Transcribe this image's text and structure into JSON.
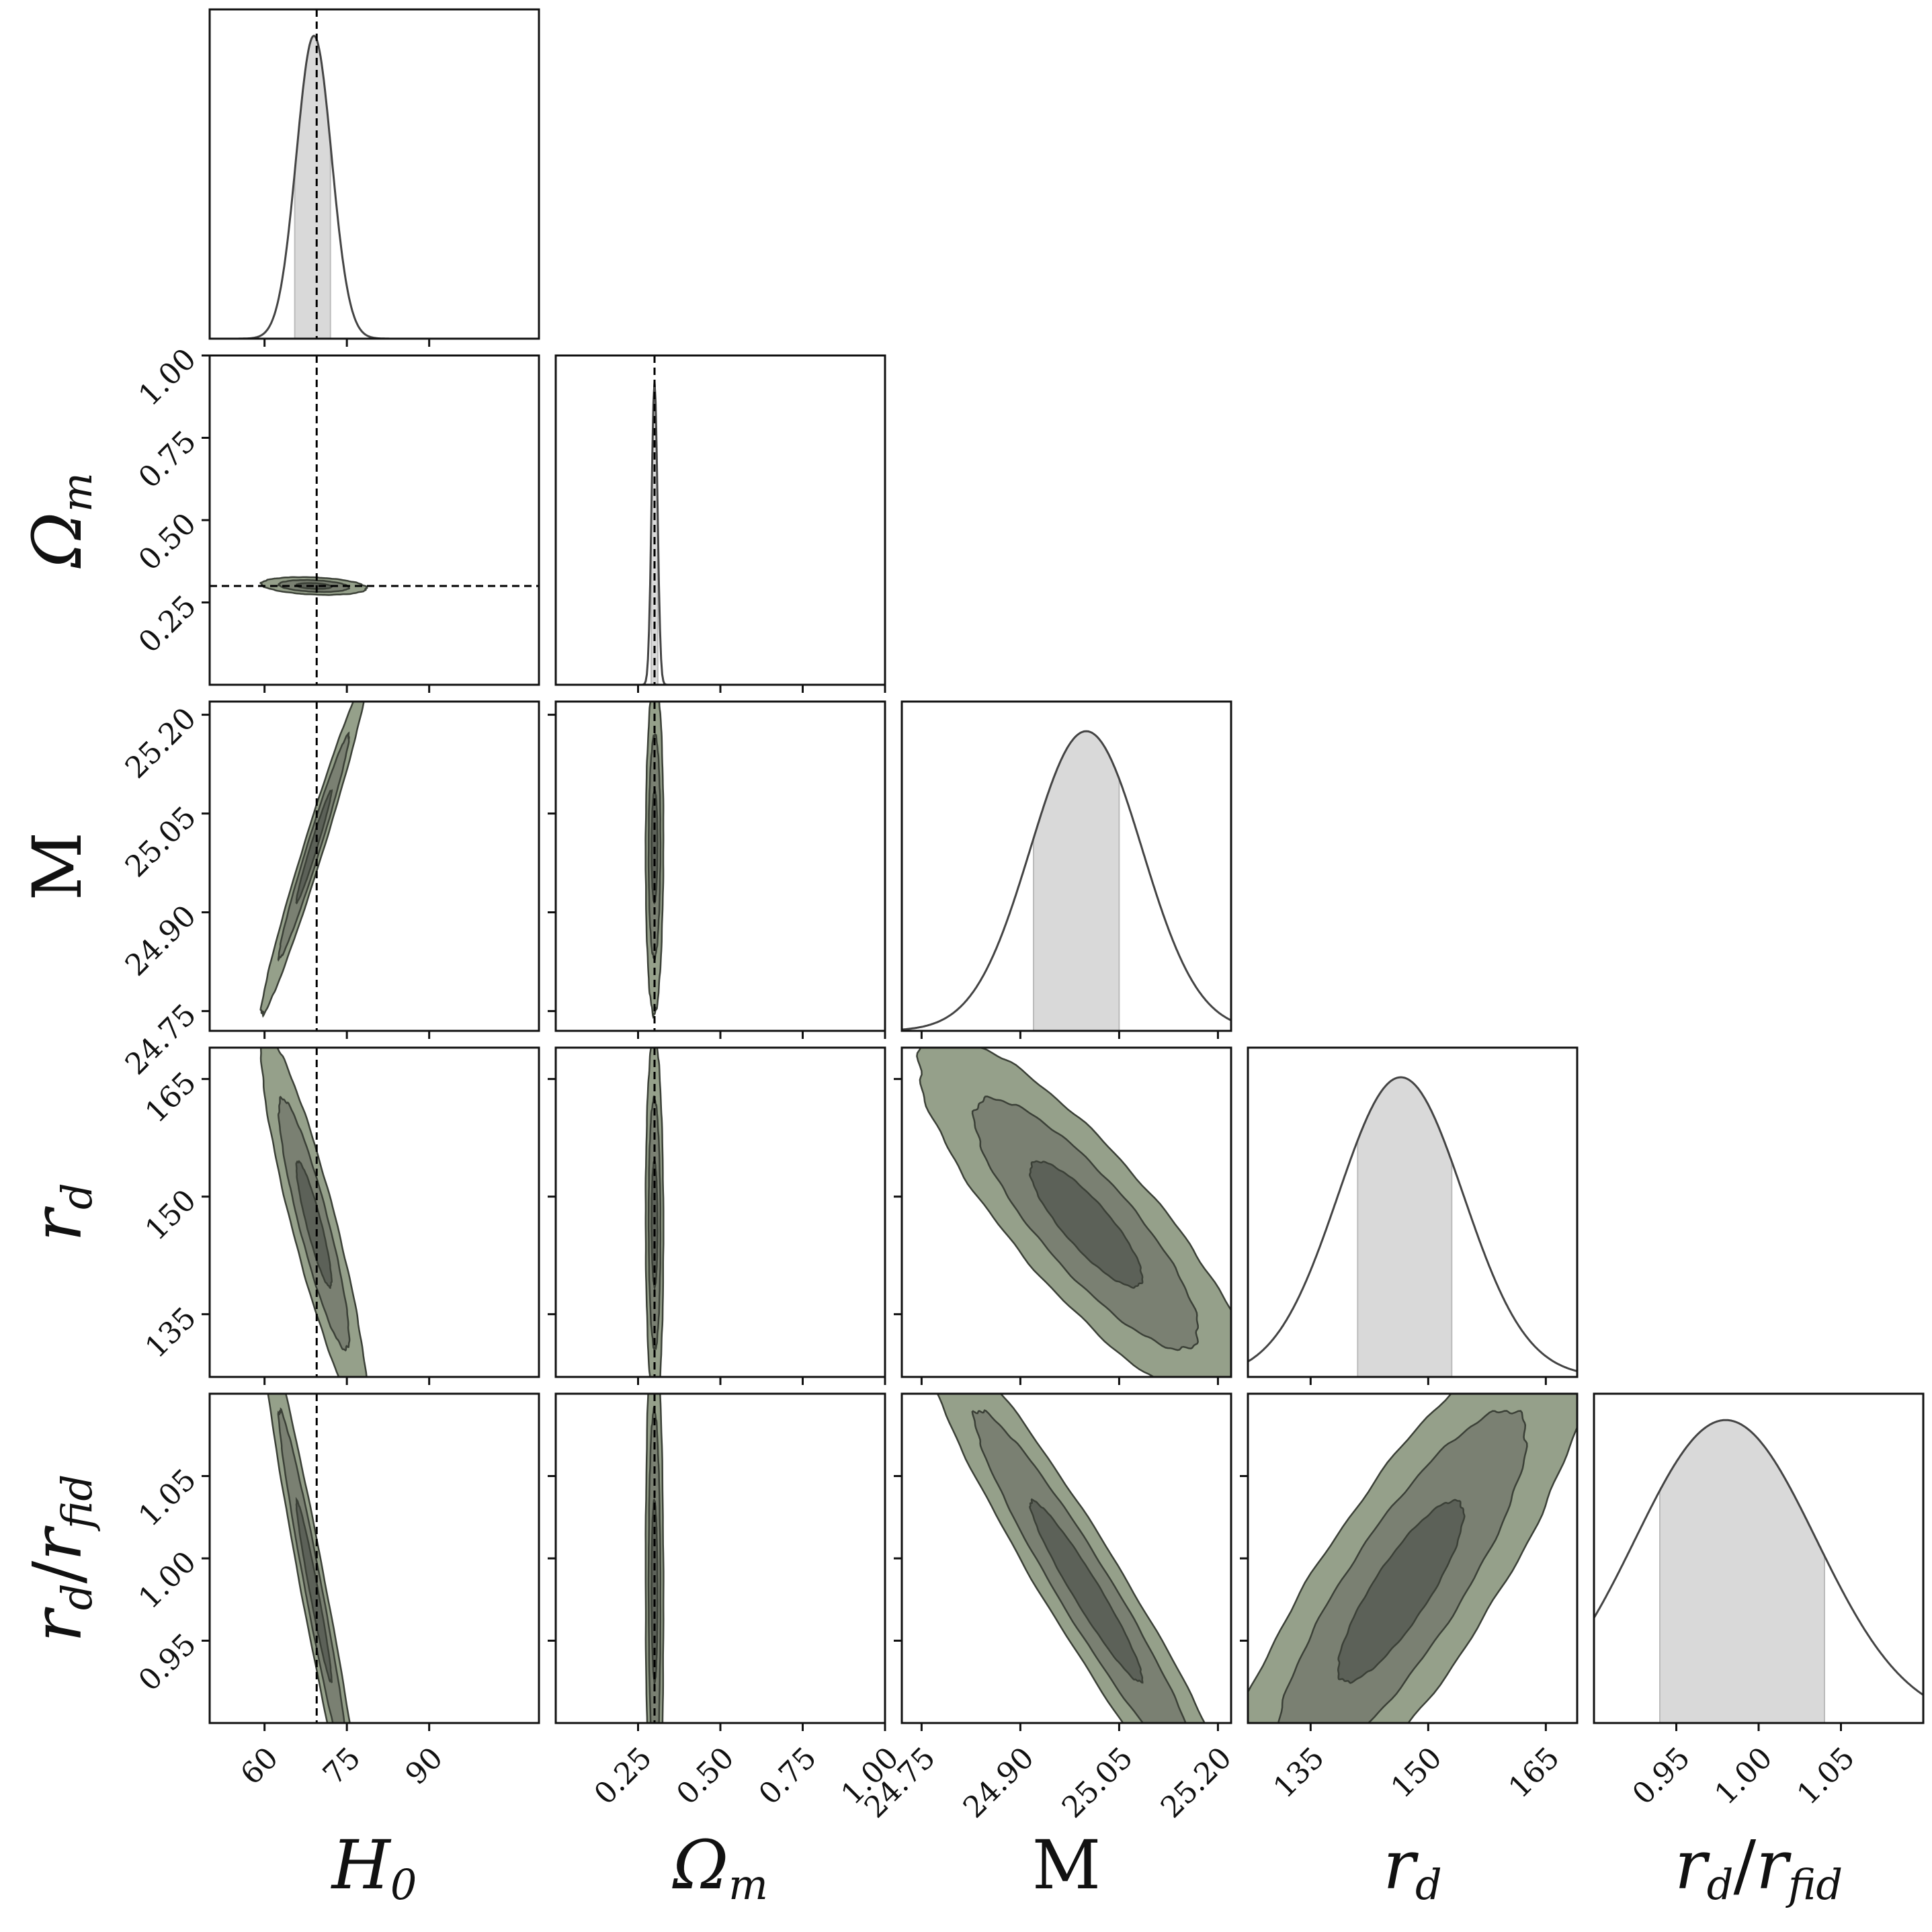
{
  "chart_data": {
    "type": "corner",
    "parameters": [
      {
        "key": "H0",
        "label": "H",
        "sub": "0",
        "range": [
          50,
          110
        ],
        "ticks": [
          60,
          75,
          90
        ],
        "tick_labels": [
          "60",
          "75",
          "90"
        ],
        "truth": 69.5,
        "roman": false
      },
      {
        "key": "Om",
        "label": "Ω",
        "sub": "m",
        "range": [
          0.0,
          1.0
        ],
        "ticks": [
          0.25,
          0.5,
          0.75,
          1.0
        ],
        "tick_labels": [
          "0.25",
          "0.50",
          "0.75",
          "1.00"
        ],
        "truth": 0.3,
        "roman": false
      },
      {
        "key": "M",
        "label": "M",
        "sub": "",
        "range": [
          24.72,
          25.22
        ],
        "ticks": [
          24.75,
          24.9,
          25.05,
          25.2
        ],
        "tick_labels": [
          "24.75",
          "24.90",
          "25.05",
          "25.20"
        ],
        "truth": null,
        "roman": true
      },
      {
        "key": "rd",
        "label": "r",
        "sub": "d",
        "range": [
          127,
          169
        ],
        "ticks": [
          135,
          150,
          165
        ],
        "tick_labels": [
          "135",
          "150",
          "165"
        ],
        "truth": null,
        "roman": false
      },
      {
        "key": "rdrf",
        "label": "r",
        "sub": "d",
        "label2": "r",
        "sub2": "fid",
        "range": [
          0.9,
          1.1
        ],
        "ticks": [
          0.95,
          1.0,
          1.05
        ],
        "tick_labels": [
          "0.95",
          "1.00",
          "1.05"
        ],
        "truth": null,
        "roman": false
      }
    ],
    "marginals": [
      {
        "param": "H0",
        "mean": 69.0,
        "sigma": 3.2,
        "interval": [
          65.5,
          72.0
        ],
        "peak": 0.92
      },
      {
        "param": "Om",
        "mean": 0.3,
        "sigma": 0.009,
        "interval": [
          0.29,
          0.31
        ],
        "peak": 0.92
      },
      {
        "param": "M",
        "mean": 25.0,
        "sigma": 0.085,
        "interval": [
          24.92,
          25.05
        ],
        "peak": 0.91
      },
      {
        "param": "rd",
        "mean": 146.5,
        "sigma": 8.0,
        "interval": [
          141,
          153
        ],
        "peak": 0.91
      },
      {
        "param": "rdrf",
        "mean": 0.98,
        "sigma": 0.055,
        "interval": [
          0.94,
          1.04
        ],
        "peak": 0.92
      }
    ],
    "correlations": [
      {
        "x": "H0",
        "y": "Om",
        "rho": -0.25
      },
      {
        "x": "H0",
        "y": "M",
        "rho": 0.98
      },
      {
        "x": "Om",
        "y": "M",
        "rho": 0.05
      },
      {
        "x": "H0",
        "y": "rd",
        "rho": -0.9
      },
      {
        "x": "Om",
        "y": "rd",
        "rho": -0.05
      },
      {
        "x": "M",
        "y": "rd",
        "rho": -0.85
      },
      {
        "x": "H0",
        "y": "rdrf",
        "rho": -0.97
      },
      {
        "x": "Om",
        "y": "rdrf",
        "rho": -0.05
      },
      {
        "x": "M",
        "y": "rdrf",
        "rho": -0.96
      },
      {
        "x": "rd",
        "y": "rdrf",
        "rho": 0.85
      }
    ],
    "contour_levels": [
      1,
      2,
      3
    ],
    "colors": {
      "outer_fill": "#95a08a",
      "mid_fill": "#7a8072",
      "inner_fill": "#5c6158",
      "contour_line": "#3b4037",
      "marginal_fill": "#d9d9d9",
      "marginal_line": "#444444",
      "truth_line": "#000000"
    }
  }
}
